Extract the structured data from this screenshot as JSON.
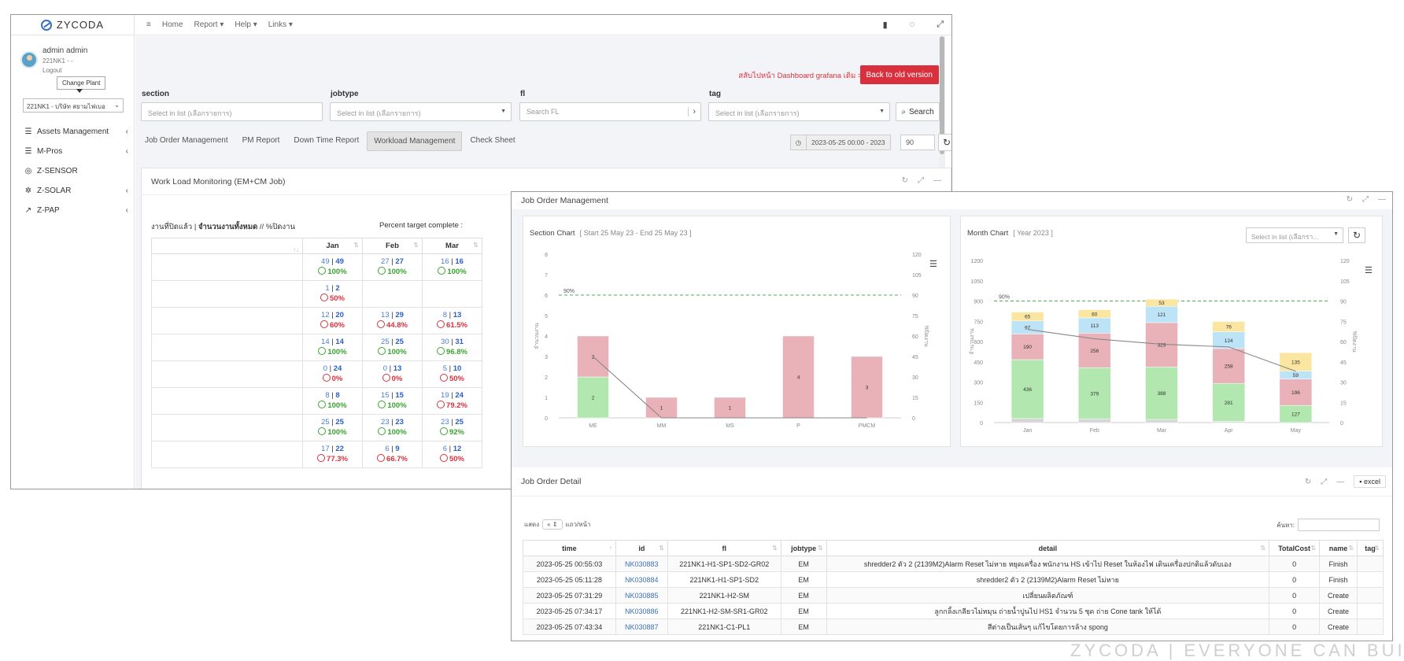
{
  "app": {
    "logo": "ZYCODA"
  },
  "user": {
    "name": "admin admin",
    "plant_code": "221NK1 - -",
    "logout": "Logout",
    "tooltip": "Change Plant",
    "plant_select": "221NK1 - บริษัท สยามไฟเบอ"
  },
  "sidebar": {
    "items": [
      {
        "label": "Assets Management",
        "icon": "database-icon",
        "has_chevron": true
      },
      {
        "label": "M-Pros",
        "icon": "database-icon",
        "has_chevron": true
      },
      {
        "label": "Z-SENSOR",
        "icon": "sensor-icon",
        "has_chevron": false
      },
      {
        "label": "Z-SOLAR",
        "icon": "gear-icon",
        "has_chevron": true
      },
      {
        "label": "Z-PAP",
        "icon": "chart-line-icon",
        "has_chevron": true
      }
    ]
  },
  "topbar": {
    "menu_icon": "≡",
    "home": "Home",
    "report": "Report ▾",
    "help": "Help ▾",
    "links": "Links ▾"
  },
  "header": {
    "dashboard_link": "สลับไปหน้า Dashboard grafana เดิม >>",
    "back_button": "Back to old version"
  },
  "filters": {
    "section_label": "section",
    "section_placeholder": "Select in list (เลือกรายการ)",
    "jobtype_label": "jobtype",
    "jobtype_placeholder": "Select in list (เลือกรายการ)",
    "fl_label": "fl",
    "fl_placeholder": "Search FL",
    "tag_label": "tag",
    "tag_placeholder": "Select in list (เลือกรายการ)",
    "search_button": "Search"
  },
  "tabs": [
    "Job Order Management",
    "PM Report",
    "Down Time Report",
    "Workload Management",
    "Check Sheet"
  ],
  "active_tab": "Workload Management",
  "date_range": "2023-05-25 00:00 - 2023",
  "days_value": "90",
  "workload": {
    "title": "Work Load Monitoring (EM+CM Job)",
    "caption_prefix": "งานที่ปิดแล้ว | ",
    "caption_bold": "จำนวนงานทั้งหมด",
    "caption_suffix": " // %ปิดงาน",
    "percent_label": "Percent target complete :",
    "months": [
      "Jan",
      "Feb",
      "Mar"
    ],
    "rows": [
      [
        {
          "a": "49",
          "b": "49",
          "pct": "100%",
          "ok": true
        },
        {
          "a": "27",
          "b": "27",
          "pct": "100%",
          "ok": true
        },
        {
          "a": "16",
          "b": "16",
          "pct": "100%",
          "ok": true
        }
      ],
      [
        {
          "a": "1",
          "b": "2",
          "pct": "50%",
          "ok": false
        },
        null,
        null
      ],
      [
        {
          "a": "12",
          "b": "20",
          "pct": "60%",
          "ok": false
        },
        {
          "a": "13",
          "b": "29",
          "pct": "44.8%",
          "ok": false
        },
        {
          "a": "8",
          "b": "13",
          "pct": "61.5%",
          "ok": false
        }
      ],
      [
        {
          "a": "14",
          "b": "14",
          "pct": "100%",
          "ok": true
        },
        {
          "a": "25",
          "b": "25",
          "pct": "100%",
          "ok": true
        },
        {
          "a": "30",
          "b": "31",
          "pct": "96.8%",
          "ok": true
        }
      ],
      [
        {
          "a": "0",
          "b": "24",
          "pct": "0%",
          "ok": false
        },
        {
          "a": "0",
          "b": "13",
          "pct": "0%",
          "ok": false
        },
        {
          "a": "5",
          "b": "10",
          "pct": "50%",
          "ok": false
        }
      ],
      [
        {
          "a": "8",
          "b": "8",
          "pct": "100%",
          "ok": true
        },
        {
          "a": "15",
          "b": "15",
          "pct": "100%",
          "ok": true
        },
        {
          "a": "19",
          "b": "24",
          "pct": "79.2%",
          "ok": false
        }
      ],
      [
        {
          "a": "25",
          "b": "25",
          "pct": "100%",
          "ok": true
        },
        {
          "a": "23",
          "b": "23",
          "pct": "100%",
          "ok": true
        },
        {
          "a": "23",
          "b": "25",
          "pct": "92%",
          "ok": true
        }
      ],
      [
        {
          "a": "17",
          "b": "22",
          "pct": "77.3%",
          "ok": false
        },
        {
          "a": "6",
          "b": "9",
          "pct": "66.7%",
          "ok": false
        },
        {
          "a": "6",
          "b": "12",
          "pct": "50%",
          "ok": false
        }
      ]
    ]
  },
  "job_order": {
    "title": "Job Order Management",
    "section_chart_title": "Section Chart",
    "section_chart_sub": "[ Start 25 May 23 - End 25 May 23 ]",
    "month_chart_title": "Month Chart",
    "month_chart_sub": "[ Year 2023 ]",
    "month_select_placeholder": "Select in list (เลือกรา...",
    "detail_title": "Job Order Detail",
    "excel_button": "excel",
    "show_prefix": "แสดง",
    "show_value": "«",
    "show_suffix": "แถว/หน้า",
    "search_label": "ค้นหา:",
    "columns": [
      "time",
      "id",
      "fl",
      "jobtype",
      "detail",
      "TotalCost",
      "name",
      "tag"
    ],
    "rows": [
      [
        "2023-05-25 00:55:03",
        "NK030883",
        "221NK1-H1-SP1-SD2-GR02",
        "EM",
        "shredder2 ตัว 2 (2139M2)Alarm Reset ไม่หาย หยุดเครื่อง พนักงาน HS เข้าไป Reset ในห้องไฟ เดินเครื่องปกติแล้วดับเอง",
        "0",
        "Finish",
        ""
      ],
      [
        "2023-05-25 05:11:28",
        "NK030884",
        "221NK1-H1-SP1-SD2",
        "EM",
        "shredder2 ตัว 2 (2139M2)Alarm Reset ไม่หาย",
        "0",
        "Finish",
        ""
      ],
      [
        "2023-05-25 07:31:29",
        "NK030885",
        "221NK1-H2-SM",
        "EM",
        "เปลี่ยนผลิตภัณฑ์",
        "0",
        "Create",
        ""
      ],
      [
        "2023-05-25 07:34:17",
        "NK030886",
        "221NK1-H2-SM-SR1-GR02",
        "EM",
        "ลูกกลิ้งเกลียวไม่หมุน ถ่ายน้ำปูนไป HS1 จำนวน 5 ชุด ถ่าย Cone tank ให้ได้",
        "0",
        "Create",
        ""
      ],
      [
        "2023-05-25 07:43:34",
        "NK030887",
        "221NK1-C1-PL1",
        "EM",
        "สีต่างเป็นเส้นๆ แก้ไขโดยการล้าง spong",
        "0",
        "Create",
        ""
      ]
    ]
  },
  "chart_data": [
    {
      "type": "bar",
      "title": "Section Chart",
      "categories": [
        "ME",
        "MM",
        "MS",
        "P",
        "PMCM"
      ],
      "stacked": true,
      "series": [
        {
          "values": [
            2,
            0,
            0,
            0,
            0
          ],
          "color": "#b2e8b0"
        },
        {
          "values": [
            2,
            1,
            1,
            4,
            3
          ],
          "color": "#e8b2b8"
        }
      ],
      "line": [
        45,
        0,
        0,
        0,
        0
      ],
      "target_line": 90,
      "target_label": "90%",
      "ylim": [
        0,
        8
      ],
      "y2lim": [
        0,
        120
      ],
      "yticks": [
        "0",
        "1",
        "2",
        "3",
        "4",
        "5",
        "6",
        "7",
        "8"
      ],
      "y2ticks": [
        "0",
        "15",
        "30",
        "45",
        "60",
        "75",
        "90",
        "105",
        "120"
      ],
      "ylabel": "จำนวนงาน",
      "y2label": "%ปิดงาน",
      "grid": false
    },
    {
      "type": "bar",
      "title": "Month Chart",
      "categories": [
        "Jan",
        "Feb",
        "Mar",
        "Apr",
        "May"
      ],
      "stacked": true,
      "series": [
        {
          "values": [
            30,
            27,
            23,
            9,
            0
          ],
          "color": "#d5d5d5"
        },
        {
          "values": [
            436,
            379,
            388,
            281,
            127
          ],
          "color": "#b2e8b0"
        },
        {
          "values": [
            190,
            256,
            329,
            258,
            196
          ],
          "color": "#e8b2b8"
        },
        {
          "values": [
            97,
            113,
            121,
            124,
            59
          ],
          "color": "#bde3f7"
        },
        {
          "values": [
            65,
            60,
            53,
            76,
            135
          ],
          "color": "#fae6a0"
        }
      ],
      "line": [
        69,
        62,
        58,
        56,
        38
      ],
      "target_line": 90,
      "target_label": "90%",
      "ylim": [
        0,
        1200
      ],
      "y2lim": [
        0,
        120
      ],
      "yticks": [
        "0",
        "150",
        "300",
        "450",
        "600",
        "750",
        "900",
        "1050",
        "1200"
      ],
      "y2ticks": [
        "0",
        "15",
        "30",
        "45",
        "60",
        "75",
        "90",
        "105",
        "120"
      ],
      "ylabel": "จำนวนงาน",
      "y2label": "%ปิดงาน",
      "grid": false
    }
  ],
  "watermark": "ZYCODA | EVERYONE CAN BUILD"
}
